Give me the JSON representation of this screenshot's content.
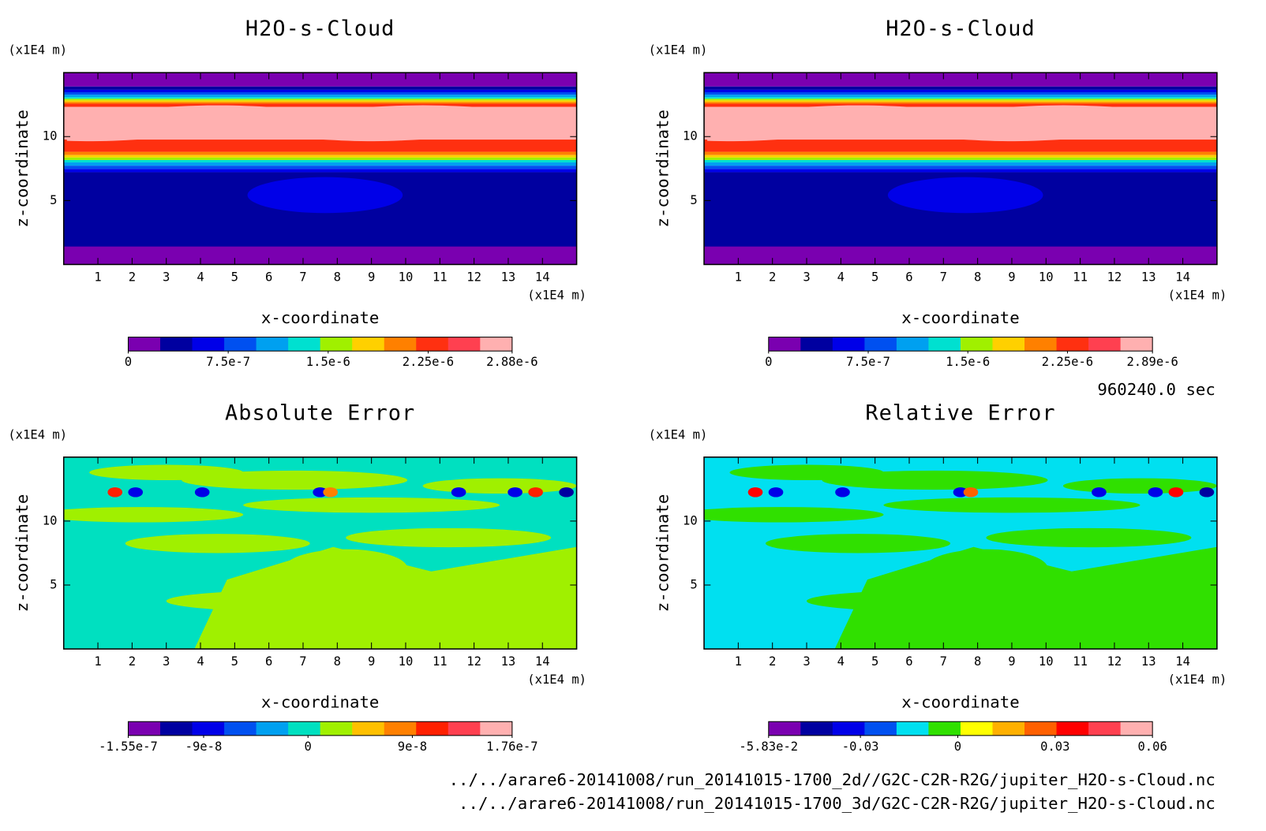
{
  "chart_data": [
    {
      "type": "contour",
      "title": "H2O-s-Cloud",
      "xlabel": "x-coordinate",
      "ylabel": "z-coordinate",
      "x_unit": "(x1E4 m)",
      "y_unit": "(x1E4 m)",
      "xlim": [
        0,
        15
      ],
      "ylim": [
        0,
        15
      ],
      "xticks": [
        1,
        2,
        3,
        4,
        5,
        6,
        7,
        8,
        9,
        10,
        11,
        12,
        13,
        14
      ],
      "yticks": [
        5,
        10
      ],
      "colorbar": {
        "lim": [
          0,
          2.88e-06
        ],
        "colors": [
          "#7a00b0",
          "#0000a0",
          "#0000e8",
          "#0050f0",
          "#00a0f0",
          "#00e0d0",
          "#a0f000",
          "#ffd000",
          "#ff8000",
          "#ff3010",
          "#ff4050",
          "#ffb0b0"
        ],
        "ticks": [
          0,
          {
            "value": 7.5e-07,
            "label": "7.5e-7"
          },
          {
            "value": 1.5e-06,
            "label": "1.5e-6"
          },
          {
            "value": 2.25e-06,
            "label": "2.25e-6"
          },
          {
            "value": 2.88e-06,
            "label": "2.88e-6"
          }
        ]
      }
    },
    {
      "type": "contour",
      "title": "H2O-s-Cloud",
      "xlabel": "x-coordinate",
      "ylabel": "z-coordinate",
      "x_unit": "(x1E4 m)",
      "y_unit": "(x1E4 m)",
      "xlim": [
        0,
        15
      ],
      "ylim": [
        0,
        15
      ],
      "xticks": [
        1,
        2,
        3,
        4,
        5,
        6,
        7,
        8,
        9,
        10,
        11,
        12,
        13,
        14
      ],
      "yticks": [
        5,
        10
      ],
      "colorbar": {
        "lim": [
          0,
          2.89e-06
        ],
        "colors": [
          "#7a00b0",
          "#0000a0",
          "#0000e8",
          "#0050f0",
          "#00a0f0",
          "#00e0d0",
          "#a0f000",
          "#ffd000",
          "#ff8000",
          "#ff3010",
          "#ff4050",
          "#ffb0b0"
        ],
        "ticks": [
          0,
          {
            "value": 7.5e-07,
            "label": "7.5e-7"
          },
          {
            "value": 1.5e-06,
            "label": "1.5e-6"
          },
          {
            "value": 2.25e-06,
            "label": "2.25e-6"
          },
          {
            "value": 2.89e-06,
            "label": "2.89e-6"
          }
        ]
      }
    },
    {
      "type": "contour",
      "title": "Absolute Error",
      "xlabel": "x-coordinate",
      "ylabel": "z-coordinate",
      "x_unit": "(x1E4 m)",
      "y_unit": "(x1E4 m)",
      "xlim": [
        0,
        15
      ],
      "ylim": [
        0,
        15
      ],
      "xticks": [
        1,
        2,
        3,
        4,
        5,
        6,
        7,
        8,
        9,
        10,
        11,
        12,
        13,
        14
      ],
      "yticks": [
        5,
        10
      ],
      "colorbar": {
        "lim": [
          -1.55e-07,
          1.76e-07
        ],
        "colors": [
          "#7a00b0",
          "#0000a0",
          "#0000e8",
          "#0050f0",
          "#00a0f0",
          "#00e0c0",
          "#a0f000",
          "#ffc000",
          "#ff8000",
          "#ff2000",
          "#ff4050",
          "#ffb0b0"
        ],
        "ticks": [
          {
            "value": -1.55e-07,
            "label": "-1.55e-7"
          },
          {
            "value": -9e-08,
            "label": "-9e-8"
          },
          0,
          {
            "value": 9e-08,
            "label": "9e-8"
          },
          {
            "value": 1.76e-07,
            "label": "1.76e-7"
          }
        ]
      }
    },
    {
      "type": "contour",
      "title": "Relative Error",
      "xlabel": "x-coordinate",
      "ylabel": "z-coordinate",
      "x_unit": "(x1E4 m)",
      "y_unit": "(x1E4 m)",
      "xlim": [
        0,
        15
      ],
      "ylim": [
        0,
        15
      ],
      "xticks": [
        1,
        2,
        3,
        4,
        5,
        6,
        7,
        8,
        9,
        10,
        11,
        12,
        13,
        14
      ],
      "yticks": [
        5,
        10
      ],
      "colorbar": {
        "lim": [
          -0.0583,
          0.06
        ],
        "colors": [
          "#7a00b0",
          "#0000a0",
          "#0000e8",
          "#0050f0",
          "#00e0f0",
          "#30e000",
          "#ffff00",
          "#ffb000",
          "#ff6000",
          "#ff0000",
          "#ff4050",
          "#ffb0b0"
        ],
        "ticks": [
          {
            "value": -0.0583,
            "label": "-5.83e-2"
          },
          -0.03,
          0,
          0.03,
          0.06
        ]
      }
    }
  ],
  "time": "960240.0 sec",
  "files": [
    "../../arare6-20141008/run_20141015-1700_2d//G2C-C2R-R2G/jupiter_H2O-s-Cloud.nc",
    "../../arare6-20141008/run_20141015-1700_3d/G2C-C2R-R2G/jupiter_H2O-s-Cloud.nc"
  ]
}
